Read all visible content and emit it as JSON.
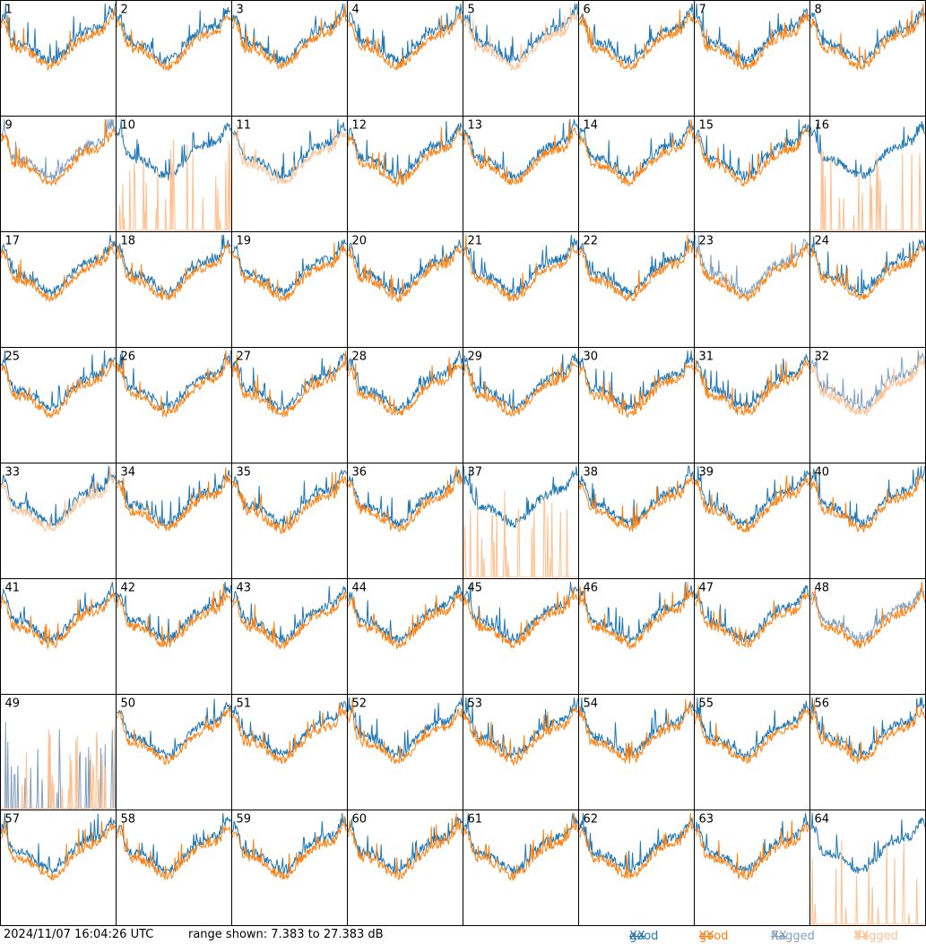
{
  "chart_data": {
    "type": "line",
    "layout": "8x8 grid of spectrum panels, one per tile",
    "timestamp": "2024/11/07 16:04:26 UTC",
    "range_text": "range shown: 7.383 to 27.383 dB",
    "ylim": [
      7.383,
      27.383
    ],
    "y_units": "dB",
    "legend": [
      {
        "word": "good",
        "pol": "XX",
        "color": "#1f77b4"
      },
      {
        "word": "good",
        "pol": "YY",
        "color": "#ff7f0e"
      },
      {
        "word": "flagged",
        "pol": "XX",
        "color": "#7f9fbf"
      },
      {
        "word": "flagged",
        "pol": "YY",
        "color": "#ffbf8f"
      }
    ],
    "tiles": [
      {
        "id": "1",
        "xx": "good",
        "yy": "good"
      },
      {
        "id": "2",
        "xx": "good",
        "yy": "good"
      },
      {
        "id": "3",
        "xx": "good",
        "yy": "good"
      },
      {
        "id": "4",
        "xx": "good",
        "yy": "good"
      },
      {
        "id": "5",
        "xx": "good",
        "yy": "flagged"
      },
      {
        "id": "6",
        "xx": "good",
        "yy": "good"
      },
      {
        "id": "7",
        "xx": "good",
        "yy": "good"
      },
      {
        "id": "8",
        "xx": "good",
        "yy": "good"
      },
      {
        "id": "9",
        "xx": "flagged",
        "yy": "good"
      },
      {
        "id": "10",
        "xx": "good",
        "yy": "flagged"
      },
      {
        "id": "11",
        "xx": "good",
        "yy": "flagged"
      },
      {
        "id": "12",
        "xx": "good",
        "yy": "good"
      },
      {
        "id": "13",
        "xx": "good",
        "yy": "good"
      },
      {
        "id": "14",
        "xx": "good",
        "yy": "good"
      },
      {
        "id": "15",
        "xx": "good",
        "yy": "good"
      },
      {
        "id": "16",
        "xx": "good",
        "yy": "flagged"
      },
      {
        "id": "17",
        "xx": "good",
        "yy": "good"
      },
      {
        "id": "18",
        "xx": "good",
        "yy": "good"
      },
      {
        "id": "19",
        "xx": "good",
        "yy": "good"
      },
      {
        "id": "20",
        "xx": "good",
        "yy": "good"
      },
      {
        "id": "21",
        "xx": "good",
        "yy": "good"
      },
      {
        "id": "22",
        "xx": "good",
        "yy": "good"
      },
      {
        "id": "23",
        "xx": "flagged",
        "yy": "good"
      },
      {
        "id": "24",
        "xx": "good",
        "yy": "good"
      },
      {
        "id": "25",
        "xx": "good",
        "yy": "good"
      },
      {
        "id": "26",
        "xx": "good",
        "yy": "good"
      },
      {
        "id": "27",
        "xx": "good",
        "yy": "good"
      },
      {
        "id": "28",
        "xx": "good",
        "yy": "good"
      },
      {
        "id": "29",
        "xx": "good",
        "yy": "good"
      },
      {
        "id": "30",
        "xx": "good",
        "yy": "good"
      },
      {
        "id": "31",
        "xx": "good",
        "yy": "good"
      },
      {
        "id": "32",
        "xx": "flagged",
        "yy": "flagged"
      },
      {
        "id": "33",
        "xx": "good",
        "yy": "flagged"
      },
      {
        "id": "34",
        "xx": "good",
        "yy": "good"
      },
      {
        "id": "35",
        "xx": "good",
        "yy": "good"
      },
      {
        "id": "36",
        "xx": "good",
        "yy": "good"
      },
      {
        "id": "37",
        "xx": "good",
        "yy": "flagged"
      },
      {
        "id": "38",
        "xx": "good",
        "yy": "good"
      },
      {
        "id": "39",
        "xx": "good",
        "yy": "good"
      },
      {
        "id": "40",
        "xx": "good",
        "yy": "good"
      },
      {
        "id": "41",
        "xx": "good",
        "yy": "good"
      },
      {
        "id": "42",
        "xx": "good",
        "yy": "good"
      },
      {
        "id": "43",
        "xx": "good",
        "yy": "good"
      },
      {
        "id": "44",
        "xx": "good",
        "yy": "good"
      },
      {
        "id": "45",
        "xx": "good",
        "yy": "good"
      },
      {
        "id": "46",
        "xx": "good",
        "yy": "good"
      },
      {
        "id": "47",
        "xx": "good",
        "yy": "good"
      },
      {
        "id": "48",
        "xx": "flagged",
        "yy": "good"
      },
      {
        "id": "49",
        "xx": "flagged",
        "yy": "flagged"
      },
      {
        "id": "50",
        "xx": "good",
        "yy": "good"
      },
      {
        "id": "51",
        "xx": "good",
        "yy": "good"
      },
      {
        "id": "52",
        "xx": "good",
        "yy": "good"
      },
      {
        "id": "53",
        "xx": "good",
        "yy": "good"
      },
      {
        "id": "54",
        "xx": "good",
        "yy": "good"
      },
      {
        "id": "55",
        "xx": "good",
        "yy": "good"
      },
      {
        "id": "56",
        "xx": "good",
        "yy": "good"
      },
      {
        "id": "57",
        "xx": "good",
        "yy": "good"
      },
      {
        "id": "58",
        "xx": "good",
        "yy": "good"
      },
      {
        "id": "59",
        "xx": "good",
        "yy": "good"
      },
      {
        "id": "60",
        "xx": "good",
        "yy": "good"
      },
      {
        "id": "61",
        "xx": "good",
        "yy": "good"
      },
      {
        "id": "62",
        "xx": "good",
        "yy": "good"
      },
      {
        "id": "63",
        "xx": "good",
        "yy": "good"
      },
      {
        "id": "64",
        "xx": "good",
        "yy": "flagged"
      }
    ]
  }
}
